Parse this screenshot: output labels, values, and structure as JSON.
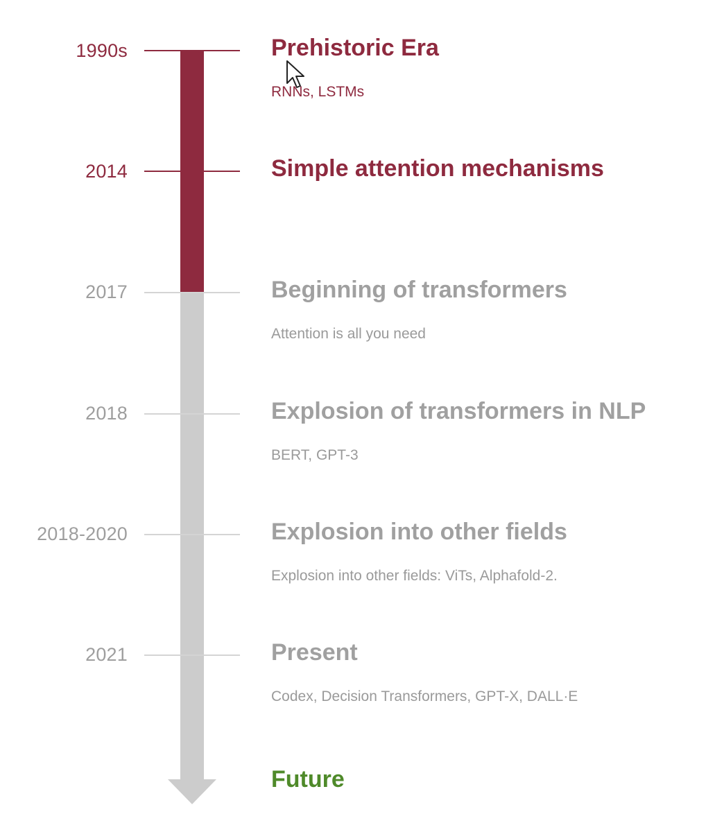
{
  "colors": {
    "past": "#8e2a3f",
    "upcoming": "#a0a0a0",
    "future": "#4f8a2a",
    "bar_past": "#8e2a3f",
    "bar_upcoming": "#cccccc"
  },
  "timeline": [
    {
      "year": "1990s",
      "title": "Prehistoric Era",
      "subtitle": "RNNs, LSTMs",
      "state": "past"
    },
    {
      "year": "2014",
      "title": "Simple attention mechanisms",
      "subtitle": "",
      "state": "past"
    },
    {
      "year": "2017",
      "title": "Beginning of transformers",
      "subtitle": "Attention is all you need",
      "state": "upcoming"
    },
    {
      "year": "2018",
      "title": "Explosion of transformers in NLP",
      "subtitle": "BERT, GPT-3",
      "state": "upcoming"
    },
    {
      "year": "2018-2020",
      "title": "Explosion into other fields",
      "subtitle": "Explosion into other fields: ViTs, Alphafold-2.",
      "state": "upcoming"
    },
    {
      "year": "2021",
      "title": "Present",
      "subtitle": "Codex, Decision Transformers, GPT-X,  DALL·E",
      "state": "upcoming"
    },
    {
      "year": "",
      "title": "Future",
      "subtitle": "",
      "state": "future"
    }
  ],
  "cursor_icon": "mouse-pointer-icon"
}
